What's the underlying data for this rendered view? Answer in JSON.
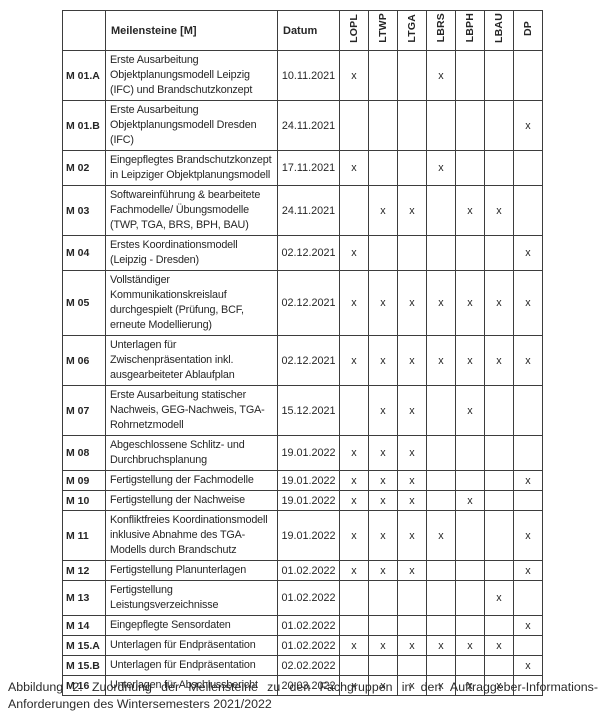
{
  "table": {
    "headers": {
      "id_label": "",
      "milestone_label": "Meilensteine [M]",
      "date_label": "Datum",
      "groups": [
        "LOPL",
        "LTWP",
        "LTGA",
        "LBRS",
        "LBPH",
        "LBAU",
        "DP"
      ]
    },
    "mark_symbol": "x",
    "rows": [
      {
        "id": "M 01.A",
        "milestone": "Erste Ausarbeitung Objektplanungsmodell Leipzig (IFC) und Brandschutzkonzept",
        "date": "10.11.2021",
        "marks": [
          1,
          0,
          0,
          1,
          0,
          0,
          0
        ]
      },
      {
        "id": "M 01.B",
        "milestone": "Erste Ausarbeitung Objektplanungsmodell Dresden (IFC)",
        "date": "24.11.2021",
        "marks": [
          0,
          0,
          0,
          0,
          0,
          0,
          1
        ]
      },
      {
        "id": "M 02",
        "milestone": "Eingepflegtes Brandschutzkonzept in Leipziger Objektplanungsmodell",
        "date": "17.11.2021",
        "marks": [
          1,
          0,
          0,
          1,
          0,
          0,
          0
        ]
      },
      {
        "id": "M 03",
        "milestone": "Softwareinführung & bearbeitete Fachmodelle/ Übungsmodelle (TWP, TGA, BRS, BPH, BAU)",
        "date": "24.11.2021",
        "marks": [
          0,
          1,
          1,
          0,
          1,
          1,
          0
        ]
      },
      {
        "id": "M 04",
        "milestone": "Erstes Koordinationsmodell (Leipzig - Dresden)",
        "date": "02.12.2021",
        "marks": [
          1,
          0,
          0,
          0,
          0,
          0,
          1
        ]
      },
      {
        "id": "M 05",
        "milestone": "Vollständiger Kommunikationskreislauf durchgespielt (Prüfung, BCF, erneute Modellierung)",
        "date": "02.12.2021",
        "marks": [
          1,
          1,
          1,
          1,
          1,
          1,
          1
        ]
      },
      {
        "id": "M 06",
        "milestone": "Unterlagen für Zwischenpräsentation inkl. ausgearbeiteter Ablaufplan",
        "date": "02.12.2021",
        "marks": [
          1,
          1,
          1,
          1,
          1,
          1,
          1
        ]
      },
      {
        "id": "M 07",
        "milestone": "Erste Ausarbeitung statischer Nachweis, GEG-Nachweis, TGA-Rohrnetzmodell",
        "date": "15.12.2021",
        "marks": [
          0,
          1,
          1,
          0,
          1,
          0,
          0
        ]
      },
      {
        "id": "M 08",
        "milestone": "Abgeschlossene Schlitz- und Durchbruchsplanung",
        "date": "19.01.2022",
        "marks": [
          1,
          1,
          1,
          0,
          0,
          0,
          0
        ]
      },
      {
        "id": "M 09",
        "milestone": "Fertigstellung der Fachmodelle",
        "date": "19.01.2022",
        "marks": [
          1,
          1,
          1,
          0,
          0,
          0,
          1
        ]
      },
      {
        "id": "M 10",
        "milestone": "Fertigstellung der Nachweise",
        "date": "19.01.2022",
        "marks": [
          1,
          1,
          1,
          0,
          1,
          0,
          0
        ]
      },
      {
        "id": "M 11",
        "milestone": "Konfliktfreies Koordinationsmodell inklusive Abnahme des TGA-Modells durch Brandschutz",
        "date": "19.01.2022",
        "marks": [
          1,
          1,
          1,
          1,
          0,
          0,
          1
        ]
      },
      {
        "id": "M 12",
        "milestone": "Fertigstellung Planunterlagen",
        "date": "01.02.2022",
        "marks": [
          1,
          1,
          1,
          0,
          0,
          0,
          1
        ]
      },
      {
        "id": "M 13",
        "milestone": "Fertigstellung Leistungsverzeichnisse",
        "date": "01.02.2022",
        "marks": [
          0,
          0,
          0,
          0,
          0,
          1,
          0
        ]
      },
      {
        "id": "M 14",
        "milestone": "Eingepflegte Sensordaten",
        "date": "01.02.2022",
        "marks": [
          0,
          0,
          0,
          0,
          0,
          0,
          1
        ]
      },
      {
        "id": "M 15.A",
        "milestone": "Unterlagen für Endpräsentation",
        "date": "01.02.2022",
        "marks": [
          1,
          1,
          1,
          1,
          1,
          1,
          0
        ]
      },
      {
        "id": "M 15.B",
        "milestone": "Unterlagen für Endpräsentation",
        "date": "02.02.2022",
        "marks": [
          0,
          0,
          0,
          0,
          0,
          0,
          1
        ]
      },
      {
        "id": "M 16",
        "milestone": "Unterlagen für Abschlussbericht",
        "date": "20.03.2022",
        "marks": [
          1,
          1,
          1,
          1,
          1,
          1,
          0
        ]
      }
    ]
  },
  "caption": {
    "line1": "Abbildung 2: Zuordnung der Meilensteine zu den Fachgruppen in den Auftraggeber-Informations-",
    "line2": "Anforderungen des Wintersemesters 2021/2022"
  }
}
